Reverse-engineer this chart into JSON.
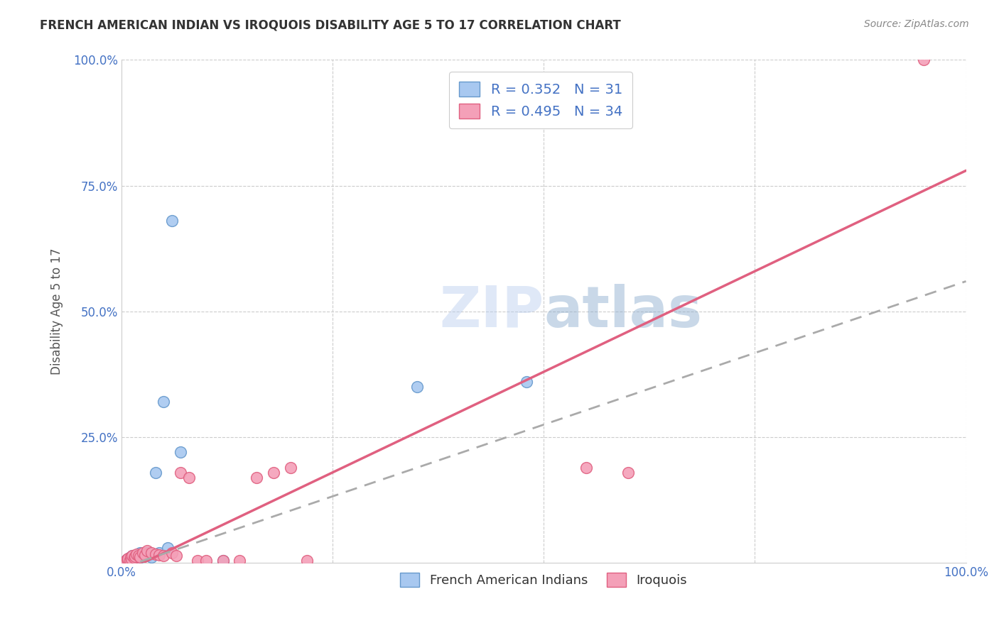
{
  "title": "FRENCH AMERICAN INDIAN VS IROQUOIS DISABILITY AGE 5 TO 17 CORRELATION CHART",
  "source": "Source: ZipAtlas.com",
  "ylabel": "Disability Age 5 to 17",
  "xlim": [
    0.0,
    1.0
  ],
  "ylim": [
    0.0,
    1.0
  ],
  "xtick_labels": [
    "0.0%",
    "",
    "",
    "",
    "100.0%"
  ],
  "ytick_labels": [
    "",
    "25.0%",
    "50.0%",
    "75.0%",
    "100.0%"
  ],
  "legend_labels": [
    "French American Indians",
    "Iroquois"
  ],
  "series1_R": 0.352,
  "series1_N": 31,
  "series2_R": 0.495,
  "series2_N": 34,
  "color_blue": "#A8C8F0",
  "color_pink": "#F4A0B8",
  "color_blue_edge": "#6699CC",
  "color_pink_edge": "#E06080",
  "color_pink_line": "#E06080",
  "color_blue_line": "#AAAAAA",
  "watermark_color": "#C8DEFF",
  "grid_color": "#CCCCCC",
  "background_color": "#FFFFFF",
  "tick_color": "#4472C4",
  "title_color": "#333333",
  "source_color": "#888888",
  "ylabel_color": "#555555",
  "blue_points_x": [
    0.005,
    0.007,
    0.008,
    0.009,
    0.01,
    0.011,
    0.012,
    0.013,
    0.014,
    0.015,
    0.016,
    0.018,
    0.019,
    0.02,
    0.021,
    0.022,
    0.025,
    0.027,
    0.03,
    0.032,
    0.035,
    0.04,
    0.045,
    0.05,
    0.055,
    0.06,
    0.07,
    0.12,
    0.35,
    0.48,
    0.015
  ],
  "blue_points_y": [
    0.005,
    0.008,
    0.006,
    0.01,
    0.007,
    0.012,
    0.009,
    0.015,
    0.01,
    0.013,
    0.008,
    0.014,
    0.011,
    0.018,
    0.01,
    0.02,
    0.015,
    0.016,
    0.02,
    0.015,
    0.012,
    0.18,
    0.02,
    0.32,
    0.03,
    0.68,
    0.22,
    0.005,
    0.35,
    0.36,
    0.005
  ],
  "pink_points_x": [
    0.005,
    0.007,
    0.008,
    0.01,
    0.011,
    0.012,
    0.013,
    0.015,
    0.016,
    0.018,
    0.02,
    0.022,
    0.025,
    0.028,
    0.03,
    0.035,
    0.04,
    0.045,
    0.05,
    0.06,
    0.065,
    0.07,
    0.08,
    0.09,
    0.1,
    0.12,
    0.14,
    0.16,
    0.18,
    0.2,
    0.22,
    0.55,
    0.6,
    0.95
  ],
  "pink_points_y": [
    0.005,
    0.007,
    0.009,
    0.006,
    0.012,
    0.008,
    0.015,
    0.01,
    0.013,
    0.018,
    0.015,
    0.012,
    0.02,
    0.016,
    0.025,
    0.02,
    0.018,
    0.016,
    0.015,
    0.02,
    0.015,
    0.18,
    0.17,
    0.005,
    0.005,
    0.005,
    0.005,
    0.17,
    0.18,
    0.19,
    0.005,
    0.19,
    0.18,
    1.0
  ],
  "pink_line_x0": 0.0,
  "pink_line_y0": -0.02,
  "pink_line_x1": 1.0,
  "pink_line_y1": 0.78,
  "blue_line_x0": 0.0,
  "blue_line_y0": -0.01,
  "blue_line_x1": 1.0,
  "blue_line_y1": 0.56
}
